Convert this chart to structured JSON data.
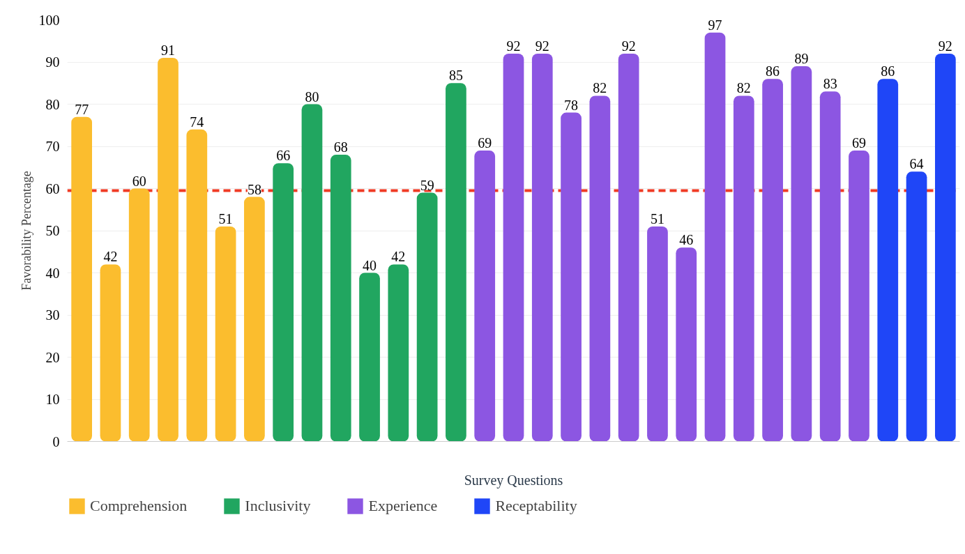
{
  "chart_data": {
    "type": "bar",
    "xlabel": "Survey Questions",
    "ylabel": "Favorability Percentage",
    "categories": [
      null,
      null,
      null,
      null,
      null,
      null,
      null,
      null,
      null,
      null,
      null,
      null,
      null,
      null,
      null,
      null,
      null,
      null,
      null,
      null,
      null,
      null,
      null,
      null,
      null,
      null,
      null,
      null,
      null,
      null,
      null
    ],
    "series": [
      {
        "name": "Comprehension",
        "color": "#fbbd2e",
        "values": [
          77,
          42,
          60,
          91,
          74,
          51,
          58,
          null,
          null,
          null,
          null,
          null,
          null,
          null,
          null,
          null,
          null,
          null,
          null,
          null,
          null,
          null,
          null,
          null,
          null,
          null,
          null,
          null,
          null,
          null,
          null
        ]
      },
      {
        "name": "Inclusivity",
        "color": "#21a660",
        "values": [
          null,
          null,
          null,
          null,
          null,
          null,
          null,
          66,
          80,
          68,
          40,
          42,
          59,
          85,
          null,
          null,
          null,
          null,
          null,
          null,
          null,
          null,
          null,
          null,
          null,
          null,
          null,
          null,
          null,
          null,
          null
        ]
      },
      {
        "name": "Experience",
        "color": "#8c56e2",
        "values": [
          null,
          null,
          null,
          null,
          null,
          null,
          null,
          null,
          null,
          null,
          null,
          null,
          null,
          null,
          69,
          92,
          92,
          78,
          82,
          92,
          51,
          46,
          97,
          82,
          86,
          89,
          83,
          69,
          null,
          null,
          null
        ]
      },
      {
        "name": "Receptability",
        "color": "#1f46f7",
        "values": [
          null,
          null,
          null,
          null,
          null,
          null,
          null,
          null,
          null,
          null,
          null,
          null,
          null,
          null,
          null,
          null,
          null,
          null,
          null,
          null,
          null,
          null,
          null,
          null,
          null,
          null,
          null,
          null,
          86,
          64,
          92
        ]
      }
    ],
    "ylim": [
      0,
      100
    ],
    "yticks": [
      0,
      10,
      20,
      30,
      40,
      50,
      60,
      70,
      80,
      90,
      100
    ],
    "ref_lines": [
      {
        "axis": "y",
        "value": 59.5,
        "color": "#f03a24",
        "line_style": "dashed"
      }
    ],
    "data_labels": true,
    "grid": "y",
    "legend": "bottom"
  }
}
